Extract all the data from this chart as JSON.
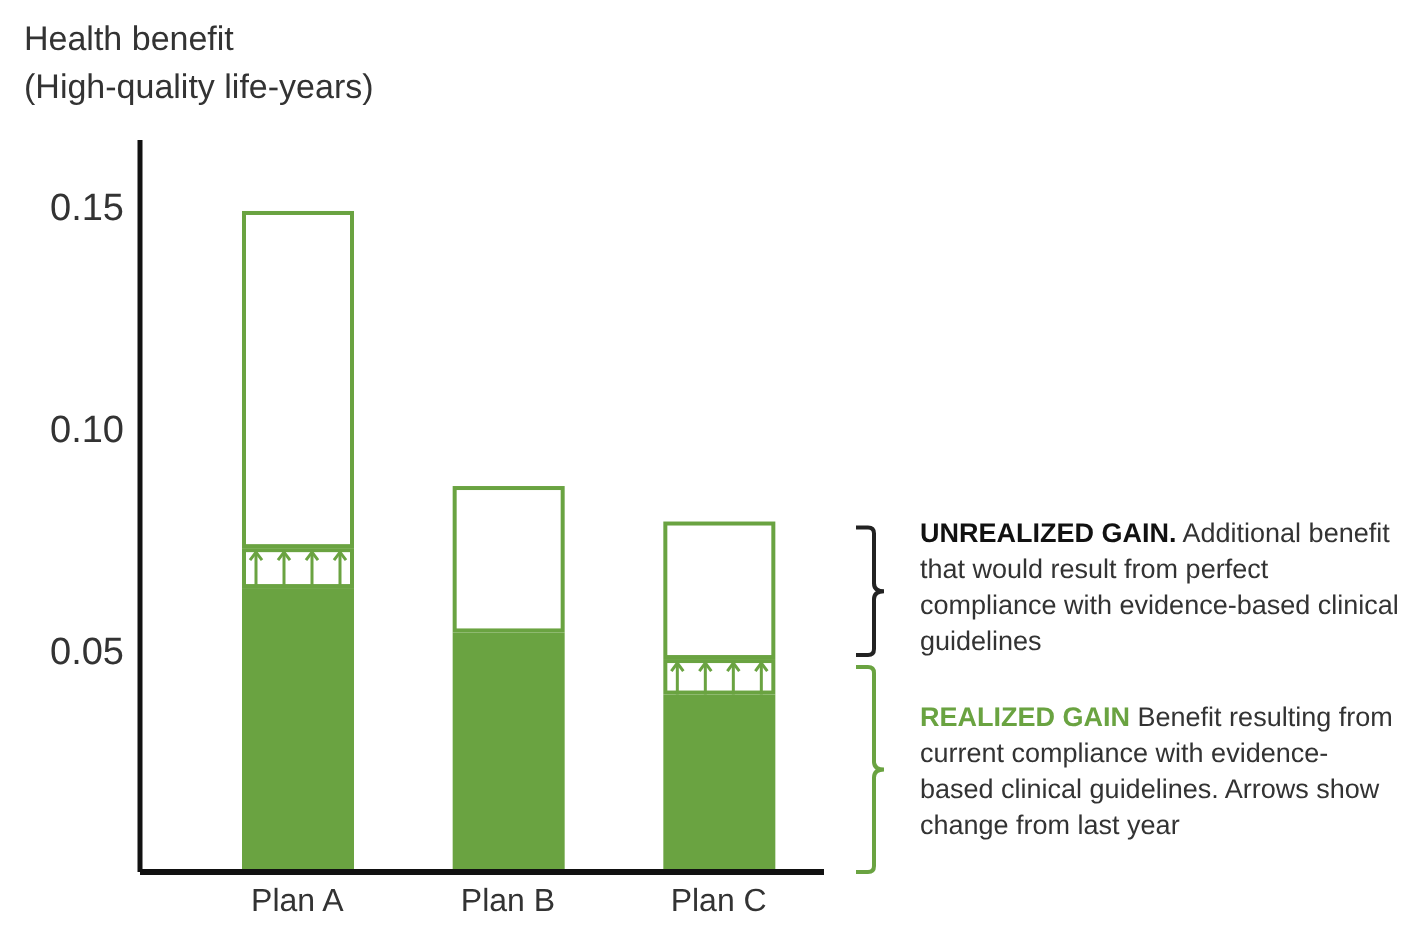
{
  "chart_data": {
    "type": "bar",
    "stacked": true,
    "ylabel": "Health benefit (High-quality life-years)",
    "categories": [
      "Plan A",
      "Plan B",
      "Plan C"
    ],
    "series": [
      {
        "color": "#6aa341",
        "values": [
          0.064,
          0.054,
          0.04
        ]
      },
      {
        "color": "#6aa341",
        "values": [
          0.009,
          null,
          0.008
        ]
      },
      {
        "color": "#6aa341",
        "values": [
          0.076,
          0.033,
          0.031
        ]
      }
    ],
    "ylim": [
      0,
      0.165
    ],
    "yticks": [
      0.05,
      {
        "value": 0.1,
        "label": "0.10"
      },
      0.15
    ],
    "grid": false,
    "legend": false,
    "annotations": [
      "UNREALIZED GAIN.",
      "Additional benefit that would result from perfect compliance with evidence-based clinical guidelines",
      "REALIZED GAIN",
      "Benefit resulting from current compliance with evidence-based clinical guidelines. Arrows show change from last year"
    ]
  }
}
